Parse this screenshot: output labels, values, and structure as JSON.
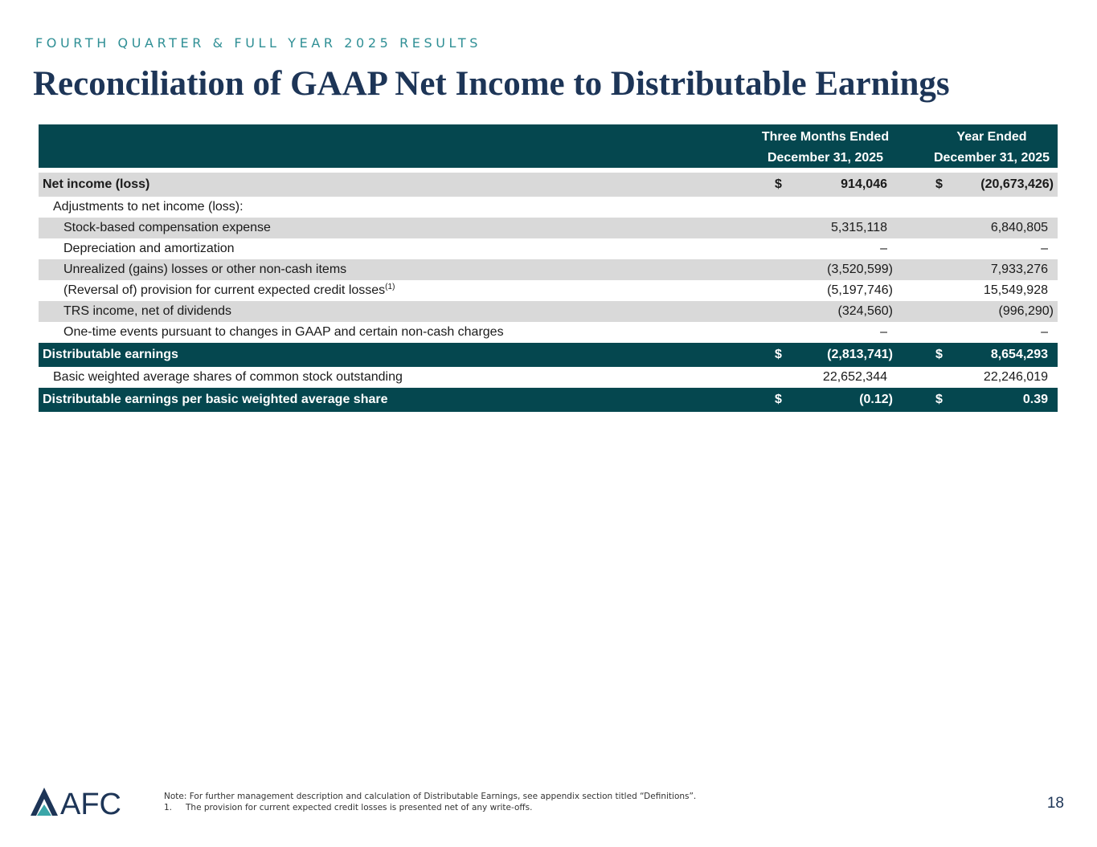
{
  "header": {
    "eyebrow": "FOURTH QUARTER & FULL YEAR 2025 RESULTS",
    "title": "Reconciliation of GAAP Net Income to Distributable Earnings"
  },
  "table": {
    "col1_line1": "Three Months Ended",
    "col1_line2": "December 31, 2025",
    "col2_line1": "Year Ended",
    "col2_line2": "December 31, 2025",
    "currency": "$",
    "rows": [
      {
        "label": "Net income (loss)",
        "v1": "914,046",
        "v2": "(20,673,426)"
      },
      {
        "label": "Adjustments to net income (loss):"
      },
      {
        "label": "Stock-based compensation expense",
        "v1": "5,315,118",
        "v2": "6,840,805"
      },
      {
        "label": "Depreciation and amortization",
        "v1": "–",
        "v2": "–"
      },
      {
        "label": "Unrealized (gains) losses or other non-cash items",
        "v1": "(3,520,599)",
        "v2": "7,933,276"
      },
      {
        "label": "(Reversal of) provision for current expected credit losses",
        "sup": "(1)",
        "v1": "(5,197,746)",
        "v2": "15,549,928"
      },
      {
        "label": "TRS income, net of dividends",
        "v1": "(324,560)",
        "v2": "(996,290)"
      },
      {
        "label": "One-time events pursuant to changes in GAAP and certain non-cash charges",
        "v1": "–",
        "v2": "–"
      },
      {
        "label": "Distributable earnings",
        "v1": "(2,813,741)",
        "v2": "8,654,293"
      },
      {
        "label": "Basic weighted average shares of common stock outstanding",
        "v1": "22,652,344",
        "v2": "22,246,019"
      },
      {
        "label": "Distributable earnings per basic weighted average share",
        "v1": "(0.12)",
        "v2": "0.39"
      }
    ]
  },
  "footer": {
    "logo_text": "AFC",
    "note": "Note: For further management description and calculation of Distributable Earnings, see appendix section titled “Definitions”.",
    "footnote_num": "1.",
    "footnote": "The provision for current expected credit losses is presented net of any write-offs.",
    "page_number": "18"
  },
  "colors": {
    "band": "#05474f",
    "title": "#1d3557",
    "eyebrow": "#2f8f95",
    "shade": "#d9d9d9",
    "logo_accent": "#3aa6a8"
  },
  "icons": [
    "afc-logo-mark"
  ]
}
